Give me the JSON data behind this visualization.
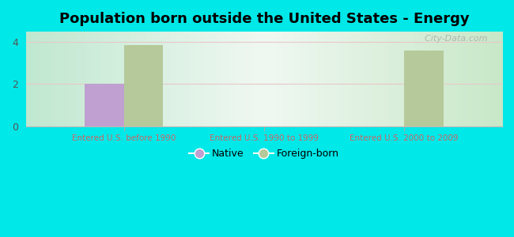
{
  "title": "Population born outside the United States - Energy",
  "categories": [
    "Entered U.S. before 1990",
    "Entered U.S. 1990 to 1999",
    "Entered U.S. 2000 to 2009"
  ],
  "native_values": [
    2.0,
    0,
    0
  ],
  "foreign_values": [
    3.85,
    0,
    3.6
  ],
  "native_color": "#c0a0d0",
  "foreign_color": "#b5c99a",
  "background_color": "#00e8e8",
  "yticks": [
    0,
    2,
    4
  ],
  "ylim": [
    0,
    4.5
  ],
  "bar_width": 0.28,
  "title_fontsize": 13,
  "legend_native": "Native",
  "legend_foreign": "Foreign-born",
  "watermark": "  City-Data.com",
  "grid_color": "#e8c8c8",
  "tick_label_color": "#cc6666",
  "plot_bg_left": "#b8e8c8",
  "plot_bg_center": "#f0f8f0",
  "plot_bg_right": "#c8e8c8"
}
